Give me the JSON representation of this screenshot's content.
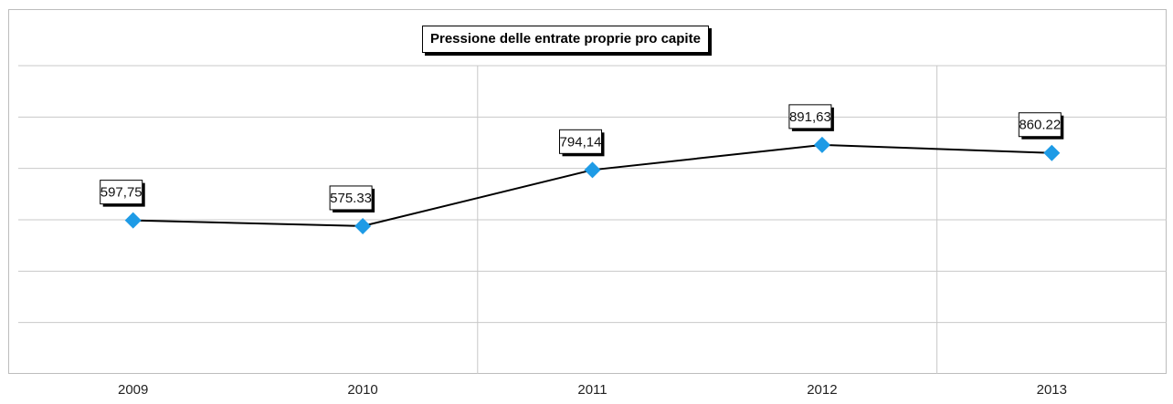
{
  "chart_data": {
    "type": "line",
    "title": "Pressione delle entrate proprie pro capite",
    "categories": [
      "2009",
      "2010",
      "2011",
      "2012",
      "2013"
    ],
    "series": [
      {
        "values": [
          597.75,
          575.33,
          794.14,
          891.63,
          860.22
        ],
        "data_labels": [
          "597,75",
          "575.33",
          "794,14",
          "891,63",
          "860.22"
        ],
        "line_color": "#000000",
        "marker": "diamond",
        "marker_color": "#1e9be6"
      }
    ],
    "xlabel": "",
    "ylabel": "",
    "ylim": [
      0,
      1200
    ],
    "grid": true,
    "legend": "none"
  }
}
